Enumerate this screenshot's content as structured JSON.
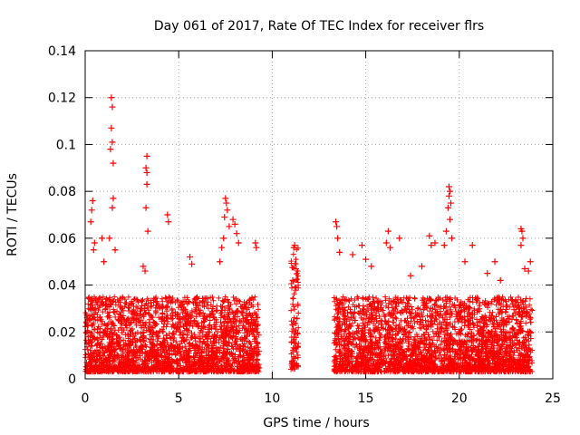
{
  "chart_data": {
    "type": "scatter",
    "title": "Day 061 of 2017, Rate Of TEC Index for receiver flrs",
    "xlabel": "GPS time / hours",
    "ylabel": "ROTI / TECUs",
    "xlim": [
      0,
      25
    ],
    "ylim": [
      0,
      0.14
    ],
    "x_ticks": [
      "0",
      "5",
      "10",
      "15",
      "20",
      "25"
    ],
    "y_ticks": [
      "0",
      "0.02",
      "0.04",
      "0.06",
      "0.08",
      "0.1",
      "0.12",
      "0.14"
    ],
    "grid": true,
    "marker": "plus",
    "color": "#ff0000",
    "point_density": "dense cloud of several thousand points; ROTI mostly 0.003–0.035 TECU/min, no data 9.3–11.0 h and 11.4–13.3 h",
    "data_segments": [
      {
        "x_range": [
          0.0,
          9.3
        ],
        "y_range": [
          0.003,
          0.035
        ]
      },
      {
        "x_range": [
          11.0,
          11.4
        ],
        "y_range": [
          0.004,
          0.057
        ]
      },
      {
        "x_range": [
          13.3,
          23.9
        ],
        "y_range": [
          0.003,
          0.035
        ]
      }
    ],
    "notable_points": [
      {
        "x": 1.4,
        "y": 0.12
      },
      {
        "x": 1.45,
        "y": 0.116
      },
      {
        "x": 1.4,
        "y": 0.107
      },
      {
        "x": 1.45,
        "y": 0.101
      },
      {
        "x": 1.35,
        "y": 0.098
      },
      {
        "x": 1.5,
        "y": 0.092
      },
      {
        "x": 1.5,
        "y": 0.077
      },
      {
        "x": 1.45,
        "y": 0.073
      },
      {
        "x": 1.3,
        "y": 0.06
      },
      {
        "x": 0.4,
        "y": 0.076
      },
      {
        "x": 0.35,
        "y": 0.072
      },
      {
        "x": 0.3,
        "y": 0.067
      },
      {
        "x": 0.5,
        "y": 0.058
      },
      {
        "x": 0.45,
        "y": 0.055
      },
      {
        "x": 0.9,
        "y": 0.06
      },
      {
        "x": 1.0,
        "y": 0.05
      },
      {
        "x": 1.6,
        "y": 0.055
      },
      {
        "x": 3.3,
        "y": 0.095
      },
      {
        "x": 3.25,
        "y": 0.09
      },
      {
        "x": 3.3,
        "y": 0.088
      },
      {
        "x": 3.3,
        "y": 0.083
      },
      {
        "x": 3.25,
        "y": 0.073
      },
      {
        "x": 3.35,
        "y": 0.063
      },
      {
        "x": 3.1,
        "y": 0.048
      },
      {
        "x": 3.2,
        "y": 0.046
      },
      {
        "x": 4.4,
        "y": 0.07
      },
      {
        "x": 4.45,
        "y": 0.067
      },
      {
        "x": 5.6,
        "y": 0.052
      },
      {
        "x": 5.7,
        "y": 0.049
      },
      {
        "x": 7.5,
        "y": 0.077
      },
      {
        "x": 7.55,
        "y": 0.075
      },
      {
        "x": 7.6,
        "y": 0.072
      },
      {
        "x": 7.45,
        "y": 0.069
      },
      {
        "x": 7.9,
        "y": 0.068
      },
      {
        "x": 8.0,
        "y": 0.066
      },
      {
        "x": 8.1,
        "y": 0.062
      },
      {
        "x": 7.7,
        "y": 0.065
      },
      {
        "x": 7.4,
        "y": 0.06
      },
      {
        "x": 7.3,
        "y": 0.056
      },
      {
        "x": 7.2,
        "y": 0.05
      },
      {
        "x": 8.2,
        "y": 0.058
      },
      {
        "x": 9.1,
        "y": 0.058
      },
      {
        "x": 9.15,
        "y": 0.056
      },
      {
        "x": 11.2,
        "y": 0.057
      },
      {
        "x": 11.15,
        "y": 0.056
      },
      {
        "x": 11.1,
        "y": 0.042
      },
      {
        "x": 13.4,
        "y": 0.067
      },
      {
        "x": 13.45,
        "y": 0.065
      },
      {
        "x": 13.5,
        "y": 0.06
      },
      {
        "x": 13.6,
        "y": 0.054
      },
      {
        "x": 14.3,
        "y": 0.053
      },
      {
        "x": 14.8,
        "y": 0.057
      },
      {
        "x": 15.0,
        "y": 0.051
      },
      {
        "x": 15.3,
        "y": 0.048
      },
      {
        "x": 16.2,
        "y": 0.063
      },
      {
        "x": 16.1,
        "y": 0.058
      },
      {
        "x": 16.3,
        "y": 0.056
      },
      {
        "x": 16.8,
        "y": 0.06
      },
      {
        "x": 17.4,
        "y": 0.044
      },
      {
        "x": 18.0,
        "y": 0.048
      },
      {
        "x": 18.4,
        "y": 0.061
      },
      {
        "x": 18.5,
        "y": 0.057
      },
      {
        "x": 18.7,
        "y": 0.058
      },
      {
        "x": 19.45,
        "y": 0.082
      },
      {
        "x": 19.5,
        "y": 0.08
      },
      {
        "x": 19.45,
        "y": 0.078
      },
      {
        "x": 19.55,
        "y": 0.075
      },
      {
        "x": 19.4,
        "y": 0.073
      },
      {
        "x": 19.5,
        "y": 0.068
      },
      {
        "x": 19.3,
        "y": 0.063
      },
      {
        "x": 19.6,
        "y": 0.06
      },
      {
        "x": 19.2,
        "y": 0.057
      },
      {
        "x": 20.3,
        "y": 0.05
      },
      {
        "x": 20.7,
        "y": 0.057
      },
      {
        "x": 21.5,
        "y": 0.045
      },
      {
        "x": 21.9,
        "y": 0.05
      },
      {
        "x": 22.2,
        "y": 0.042
      },
      {
        "x": 23.3,
        "y": 0.064
      },
      {
        "x": 23.35,
        "y": 0.063
      },
      {
        "x": 23.4,
        "y": 0.06
      },
      {
        "x": 23.3,
        "y": 0.057
      },
      {
        "x": 23.5,
        "y": 0.047
      },
      {
        "x": 23.8,
        "y": 0.05
      },
      {
        "x": 23.7,
        "y": 0.046
      }
    ]
  }
}
